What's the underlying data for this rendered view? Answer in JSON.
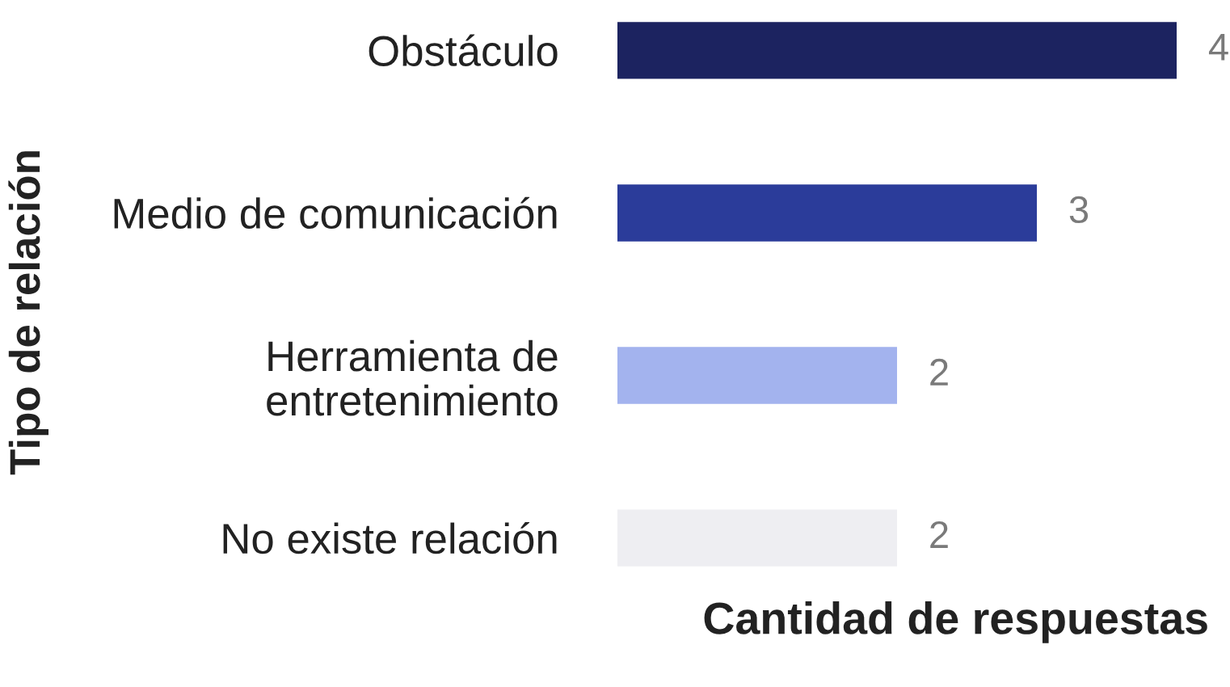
{
  "chart_data": {
    "type": "bar",
    "orientation": "horizontal",
    "categories": [
      "Obstáculo",
      "Medio de comunicación",
      "Herramienta de\nentretenimiento",
      "No existe relación"
    ],
    "values": [
      4,
      3,
      2,
      2
    ],
    "colors": [
      "#1c2360",
      "#2b3c9a",
      "#a3b3ee",
      "#eeeef2"
    ],
    "data_labels": true,
    "xlabel": "Cantidad de respuestas",
    "ylabel": "Tipo de relación",
    "tick_labels": "y"
  }
}
